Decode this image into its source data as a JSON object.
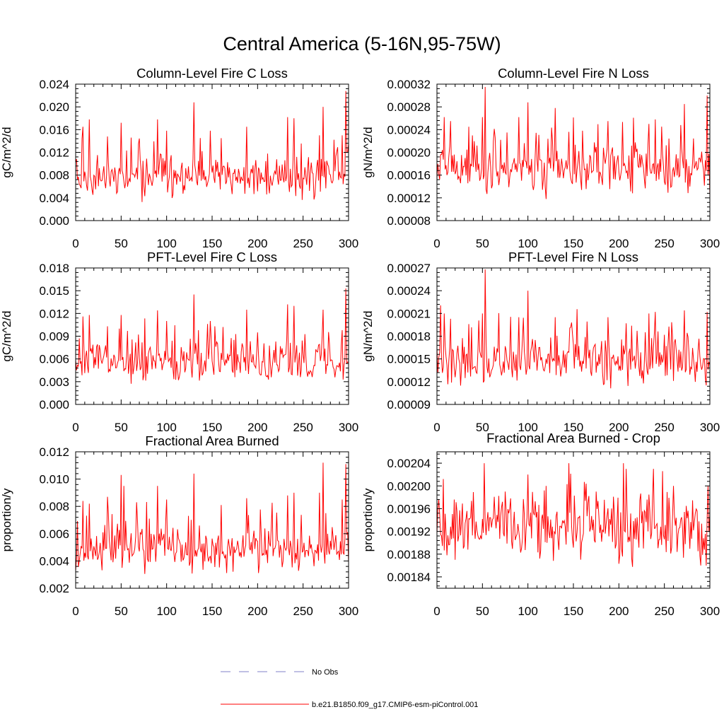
{
  "title": "Central America (5-16N,95-75W)",
  "colors": {
    "series": "#ff0000",
    "obs": "#8080c8",
    "axis": "#000000"
  },
  "legend": {
    "obs_label": "No Obs",
    "model_label": "b.e21.B1850.f09_g17.CMIP6-esm-piControl.001"
  },
  "chart_data": [
    {
      "type": "line",
      "title": "Column-Level Fire C Loss",
      "ylabel": "gC/m^2/d",
      "xlabel": "",
      "xlim": [
        0,
        300
      ],
      "ylim": [
        0,
        0.024
      ],
      "xticks": [
        "0",
        "50",
        "100",
        "150",
        "200",
        "250",
        "300"
      ],
      "yticks": [
        "0.000",
        "0.004",
        "0.008",
        "0.012",
        "0.016",
        "0.020",
        "0.024"
      ],
      "series": [
        {
          "name": "b.e21.B1850.f09_g17.CMIP6-esm-piControl.001",
          "base": 0.0075,
          "spread": 0.0019,
          "min": 0.0022,
          "seed": 11,
          "peaks": [
            [
              8,
              0.0165
            ],
            [
              15,
              0.0178
            ],
            [
              35,
              0.0148
            ],
            [
              50,
              0.0172
            ],
            [
              90,
              0.0178
            ],
            [
              100,
              0.0158
            ],
            [
              130,
              0.0208
            ],
            [
              148,
              0.0158
            ],
            [
              160,
              0.0145
            ],
            [
              188,
              0.0165
            ],
            [
              233,
              0.0182
            ],
            [
              240,
              0.018
            ],
            [
              268,
              0.015
            ],
            [
              272,
              0.02
            ],
            [
              293,
              0.015
            ],
            [
              297,
              0.0228
            ],
            [
              299,
              0.012
            ]
          ]
        }
      ]
    },
    {
      "type": "line",
      "title": "Column-Level Fire N Loss",
      "ylabel": "gN/m^2/d",
      "xlabel": "",
      "xlim": [
        0,
        300
      ],
      "ylim": [
        8e-05,
        0.00032
      ],
      "xticks": [
        "0",
        "50",
        "100",
        "150",
        "200",
        "250",
        "300"
      ],
      "yticks": [
        "0.00008",
        "0.00012",
        "0.00016",
        "0.00020",
        "0.00024",
        "0.00028",
        "0.00032"
      ],
      "series": [
        {
          "name": "b.e21.B1850.f09_g17.CMIP6-esm-piControl.001",
          "base": 0.000168,
          "spread": 2.2e-05,
          "min": 0.000112,
          "seed": 23,
          "peaks": [
            [
              8,
              0.000262
            ],
            [
              15,
              0.000255
            ],
            [
              35,
              0.000245
            ],
            [
              50,
              0.000262
            ],
            [
              53,
              0.000315
            ],
            [
              90,
              0.000262
            ],
            [
              100,
              0.000288
            ],
            [
              130,
              0.000278
            ],
            [
              160,
              0.000238
            ],
            [
              188,
              0.000255
            ],
            [
              233,
              0.00025
            ],
            [
              240,
              0.000258
            ],
            [
              268,
              0.000248
            ],
            [
              272,
              0.000285
            ],
            [
              297,
              0.0003
            ]
          ]
        }
      ]
    },
    {
      "type": "line",
      "title": "PFT-Level Fire C Loss",
      "ylabel": "gC/m^2/d",
      "xlabel": "",
      "xlim": [
        0,
        300
      ],
      "ylim": [
        0,
        0.018
      ],
      "xticks": [
        "0",
        "50",
        "100",
        "150",
        "200",
        "250",
        "300"
      ],
      "yticks": [
        "0.000",
        "0.003",
        "0.006",
        "0.009",
        "0.012",
        "0.015",
        "0.018"
      ],
      "series": [
        {
          "name": "b.e21.B1850.f09_g17.CMIP6-esm-piControl.001",
          "base": 0.0055,
          "spread": 0.0014,
          "min": 0.0015,
          "seed": 37,
          "peaks": [
            [
              8,
              0.0116
            ],
            [
              15,
              0.0118
            ],
            [
              35,
              0.0103
            ],
            [
              50,
              0.0118
            ],
            [
              90,
              0.0124
            ],
            [
              100,
              0.011
            ],
            [
              130,
              0.0145
            ],
            [
              148,
              0.011
            ],
            [
              188,
              0.0125
            ],
            [
              233,
              0.0132
            ],
            [
              240,
              0.013
            ],
            [
              272,
              0.0125
            ],
            [
              293,
              0.0098
            ],
            [
              297,
              0.0153
            ]
          ]
        }
      ]
    },
    {
      "type": "line",
      "title": "PFT-Level Fire N Loss",
      "ylabel": "gN/m^2/d",
      "xlabel": "",
      "xlim": [
        0,
        300
      ],
      "ylim": [
        9e-05,
        0.00027
      ],
      "xticks": [
        "0",
        "50",
        "100",
        "150",
        "200",
        "250",
        "300"
      ],
      "yticks": [
        "0.00009",
        "0.00012",
        "0.00015",
        "0.00018",
        "0.00021",
        "0.00024",
        "0.00027"
      ],
      "series": [
        {
          "name": "b.e21.B1850.f09_g17.CMIP6-esm-piControl.001",
          "base": 0.000146,
          "spread": 1.55e-05,
          "min": 0.000105,
          "seed": 41,
          "peaks": [
            [
              8,
              0.00021
            ],
            [
              15,
              0.000203
            ],
            [
              35,
              0.000196
            ],
            [
              50,
              0.00021
            ],
            [
              53,
              0.000268
            ],
            [
              90,
              0.000205
            ],
            [
              100,
              0.00024
            ],
            [
              130,
              0.000205
            ],
            [
              148,
              0.000198
            ],
            [
              188,
              0.000205
            ],
            [
              233,
              0.00021
            ],
            [
              240,
              0.000212
            ],
            [
              272,
              0.000214
            ],
            [
              297,
              0.000212
            ]
          ]
        }
      ]
    },
    {
      "type": "line",
      "title": "Fractional Area Burned",
      "ylabel": "proportion/y",
      "xlabel": "",
      "xlim": [
        0,
        300
      ],
      "ylim": [
        0.002,
        0.012
      ],
      "xticks": [
        "0",
        "50",
        "100",
        "150",
        "200",
        "250",
        "300"
      ],
      "yticks": [
        "0.002",
        "0.004",
        "0.006",
        "0.008",
        "0.010",
        "0.012"
      ],
      "series": [
        {
          "name": "b.e21.B1850.f09_g17.CMIP6-esm-piControl.001",
          "base": 0.0048,
          "spread": 0.0008,
          "min": 0.0027,
          "seed": 53,
          "peaks": [
            [
              8,
              0.0084
            ],
            [
              15,
              0.0082
            ],
            [
              35,
              0.0087
            ],
            [
              50,
              0.0103
            ],
            [
              53,
              0.0095
            ],
            [
              90,
              0.0095
            ],
            [
              100,
              0.0085
            ],
            [
              130,
              0.0104
            ],
            [
              160,
              0.0081
            ],
            [
              188,
              0.0086
            ],
            [
              233,
              0.0088
            ],
            [
              240,
              0.009
            ],
            [
              268,
              0.009
            ],
            [
              272,
              0.0112
            ],
            [
              293,
              0.0085
            ],
            [
              297,
              0.0111
            ]
          ]
        }
      ]
    },
    {
      "type": "line",
      "title": "Fractional Area Burned - Crop",
      "ylabel": "proportion/y",
      "xlabel": "",
      "xlim": [
        0,
        300
      ],
      "ylim": [
        0.00182,
        0.00206
      ],
      "xticks": [
        "0",
        "50",
        "100",
        "150",
        "200",
        "250",
        "300"
      ],
      "yticks": [
        "0.00184",
        "0.00188",
        "0.00192",
        "0.00196",
        "0.00200",
        "0.00204"
      ],
      "series": [
        {
          "name": "b.e21.B1850.f09_g17.CMIP6-esm-piControl.001",
          "base": 0.001925,
          "spread": 2.6e-05,
          "min": 0.001855,
          "seed": 67,
          "peaks": [
            [
              20,
              0.00187
            ],
            [
              52,
              0.00204
            ],
            [
              75,
              0.00199
            ],
            [
              100,
              0.00202
            ],
            [
              120,
              0.002
            ],
            [
              145,
              0.00204
            ],
            [
              175,
              0.00199
            ],
            [
              205,
              0.00204
            ],
            [
              208,
              0.00203
            ],
            [
              238,
              0.00203
            ],
            [
              260,
              0.002
            ],
            [
              290,
              0.00186
            ],
            [
              296,
              0.00186
            ],
            [
              298,
              0.002
            ]
          ]
        }
      ]
    }
  ]
}
